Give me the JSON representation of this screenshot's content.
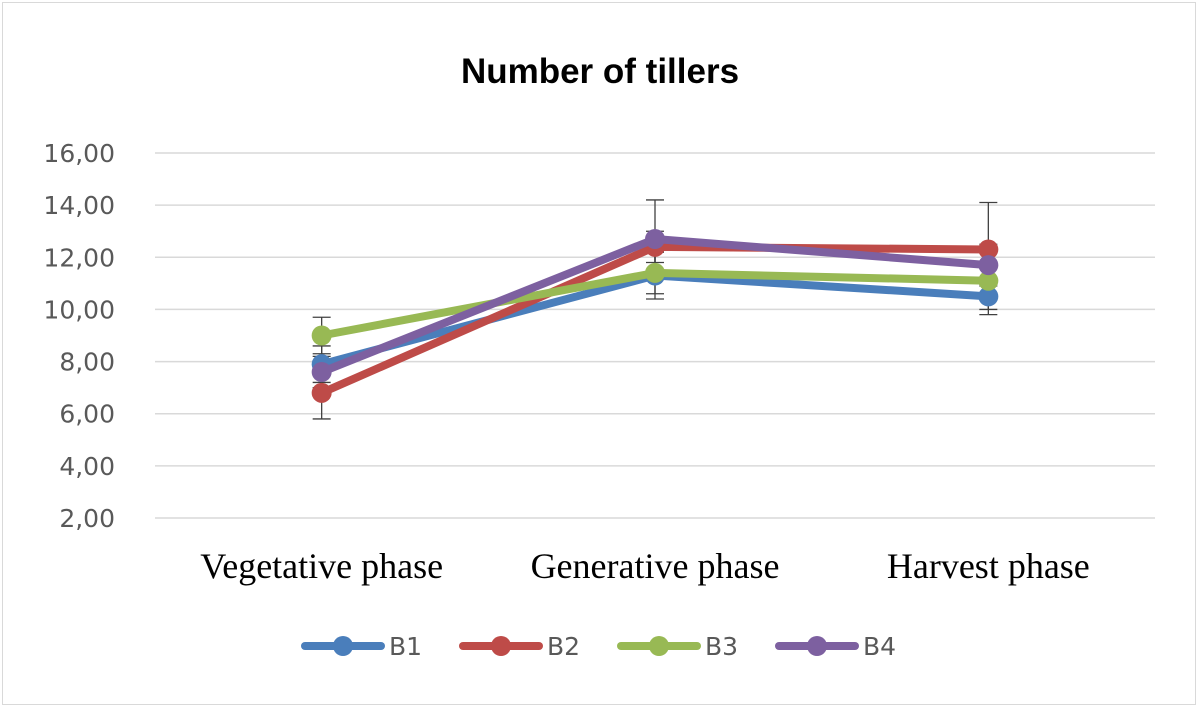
{
  "chart_data": {
    "type": "line",
    "title": "Number of tillers",
    "xlabel": "",
    "ylabel": "",
    "categories": [
      "Vegetative phase",
      "Generative phase",
      "Harvest phase"
    ],
    "ylim": [
      2,
      16
    ],
    "yticks": [
      2,
      4,
      6,
      8,
      10,
      12,
      14,
      16
    ],
    "ytick_labels": [
      "2,00",
      "4,00",
      "6,00",
      "8,00",
      "10,00",
      "12,00",
      "14,00",
      "16,00"
    ],
    "grid": true,
    "legend_position": "bottom",
    "series": [
      {
        "name": "B1",
        "color": "#4a7ebb",
        "values": [
          7.9,
          11.3,
          10.5
        ],
        "error": [
          0.7,
          0.9,
          0.7
        ]
      },
      {
        "name": "B2",
        "color": "#be4b48",
        "values": [
          6.8,
          12.4,
          12.3
        ],
        "error": [
          1.0,
          0.6,
          1.8
        ]
      },
      {
        "name": "B3",
        "color": "#98b954",
        "values": [
          9.0,
          11.4,
          11.1
        ],
        "error": [
          0.7,
          0.8,
          1.1
        ]
      },
      {
        "name": "B4",
        "color": "#7d60a0",
        "values": [
          7.6,
          12.7,
          11.7
        ],
        "error": [
          0.6,
          1.5,
          0.8
        ]
      }
    ]
  }
}
